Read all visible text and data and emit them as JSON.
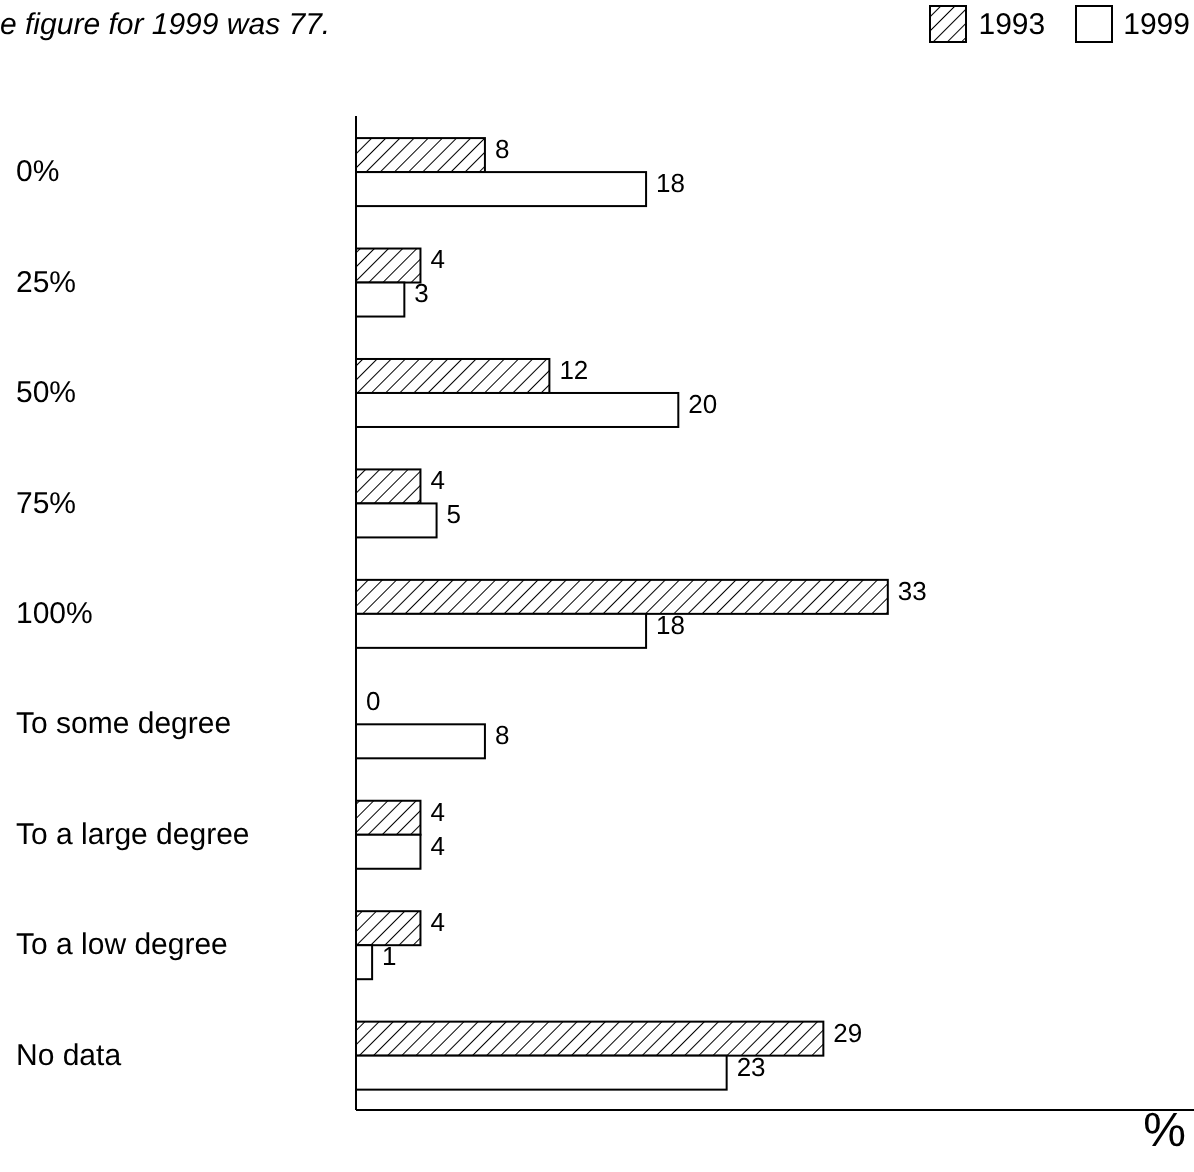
{
  "chart_data": {
    "type": "bar",
    "orientation": "horizontal",
    "xlabel": "%",
    "annotations": [
      "e figure for 1999 was 77."
    ],
    "categories": [
      "0%",
      "25%",
      "50%",
      "75%",
      "100%",
      "To some degree",
      "To a large degree",
      "To a low degree",
      "No data"
    ],
    "series": [
      {
        "name": "1993",
        "color": "#000000",
        "values": [
          8,
          4,
          12,
          4,
          33,
          0,
          4,
          4,
          29
        ]
      },
      {
        "name": "1999",
        "color": "#ffffff",
        "values": [
          18,
          3,
          20,
          5,
          18,
          8,
          4,
          1,
          23
        ]
      }
    ],
    "xlim": [
      0,
      52
    ],
    "data_labels": true,
    "legend": "top right",
    "grid": false,
    "tick_labels": "y"
  }
}
